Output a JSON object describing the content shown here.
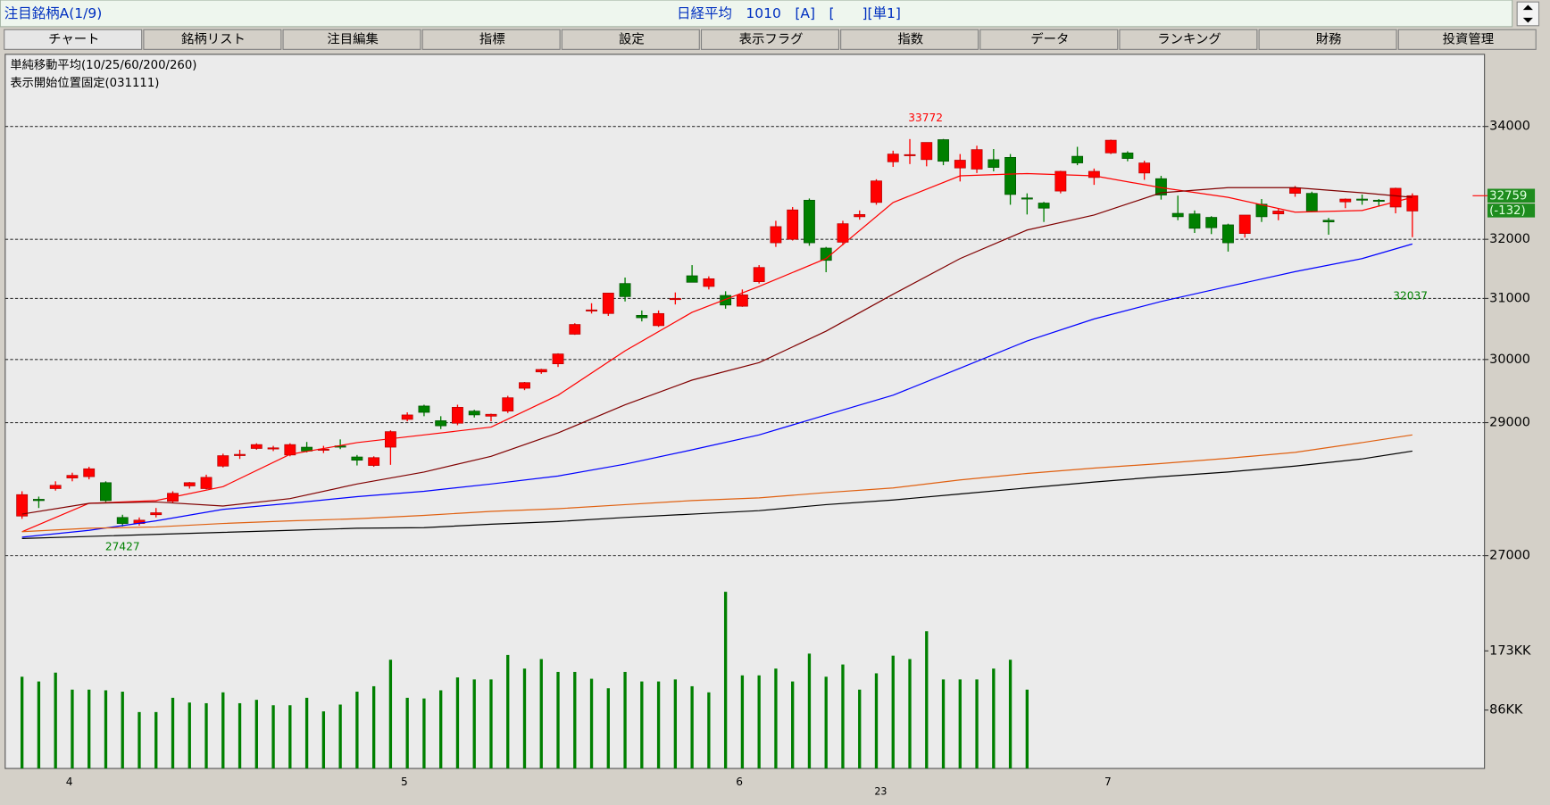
{
  "header": {
    "title": "注目銘柄A(1/9)",
    "info": "日経平均　1010　[A]　[　　][単1]"
  },
  "tabs": [
    "チャート",
    "銘柄リスト",
    "注目編集",
    "指標",
    "設定",
    "表示フラグ",
    "指数",
    "データ",
    "ランキング",
    "財務",
    "投資管理"
  ],
  "chart_data": {
    "type": "candlestick",
    "title": "単純移動平均(10/25/60/200/260)",
    "subtitle": "表示開始位置固定(031111)",
    "year_label": "23",
    "categories": [
      null,
      null,
      null,
      "4",
      null,
      null,
      null,
      null,
      null,
      null,
      null,
      null,
      null,
      null,
      null,
      null,
      null,
      null,
      null,
      null,
      null,
      null,
      null,
      "5",
      null,
      null,
      null,
      null,
      null,
      null,
      null,
      null,
      null,
      null,
      null,
      null,
      null,
      null,
      null,
      null,
      null,
      null,
      null,
      "6",
      null,
      null,
      null,
      null,
      null,
      null,
      null,
      null,
      null,
      null,
      null,
      null,
      null,
      null,
      null,
      null,
      null,
      null,
      null,
      null,
      null,
      "7",
      null,
      null,
      null,
      null,
      null,
      null,
      null,
      null,
      null,
      null,
      null,
      null,
      null,
      null,
      null,
      null,
      null,
      null
    ],
    "open": [
      27580,
      27830,
      27990,
      28150,
      28170,
      28080,
      27560,
      27470,
      27600,
      27800,
      28030,
      27990,
      28330,
      28490,
      28600,
      28610,
      28500,
      28620,
      28580,
      28640,
      28470,
      28340,
      28620,
      29050,
      29260,
      29030,
      28990,
      29180,
      29100,
      29180,
      29540,
      29800,
      29930,
      30410,
      30800,
      30750,
      31250,
      30720,
      30550,
      30980,
      31380,
      31200,
      31050,
      30870,
      31280,
      31940,
      32000,
      32680,
      31850,
      31950,
      32390,
      32640,
      33360,
      33490,
      33400,
      33760,
      33250,
      33230,
      33400,
      33440,
      32720,
      32630,
      32840,
      33460,
      33080,
      33520,
      33520,
      33160,
      33060,
      32450,
      32440,
      32380,
      32250,
      32100,
      32610,
      32440,
      32800,
      32800,
      32330,
      32650,
      32700,
      32680,
      32560,
      32490
    ],
    "high": [
      27950,
      27870,
      28100,
      28230,
      28320,
      28100,
      27600,
      27560,
      27700,
      27950,
      28090,
      28200,
      28520,
      28580,
      28680,
      28640,
      28680,
      28700,
      28640,
      28740,
      28500,
      28480,
      28880,
      29160,
      29280,
      29100,
      29280,
      29200,
      29140,
      29420,
      29640,
      29850,
      30100,
      30590,
      30920,
      31090,
      31350,
      30800,
      30800,
      31100,
      31560,
      31370,
      31120,
      31150,
      31560,
      32320,
      32560,
      32710,
      31870,
      32320,
      32500,
      33050,
      33560,
      33770,
      33710,
      33772,
      33500,
      33650,
      33590,
      33500,
      32800,
      32650,
      33200,
      33630,
      33240,
      33760,
      33550,
      33380,
      33110,
      32760,
      32500,
      32400,
      32270,
      32420,
      32700,
      32540,
      32930,
      32830,
      32370,
      32710,
      32780,
      32700,
      32900,
      32800
    ],
    "low": [
      27540,
      27700,
      27960,
      28100,
      28130,
      27790,
      27427,
      27440,
      27560,
      27780,
      27990,
      27980,
      28310,
      28440,
      28580,
      28560,
      28480,
      28540,
      28530,
      28590,
      28340,
      28320,
      28350,
      29020,
      29100,
      28900,
      28960,
      29080,
      29020,
      29150,
      29510,
      29770,
      29880,
      30400,
      30750,
      30710,
      30950,
      30620,
      30530,
      30900,
      31300,
      31150,
      30830,
      30860,
      31250,
      31870,
      31980,
      31890,
      31440,
      31900,
      32340,
      32600,
      33270,
      33320,
      33280,
      33300,
      33010,
      33160,
      33190,
      32600,
      32430,
      32300,
      32800,
      33300,
      32950,
      33500,
      33370,
      33040,
      32690,
      32330,
      32110,
      32090,
      31790,
      32030,
      32300,
      32330,
      32740,
      32480,
      32080,
      32540,
      32600,
      32580,
      32450,
      32037
    ],
    "close": [
      27900,
      27810,
      28040,
      28190,
      28290,
      27810,
      27470,
      27520,
      27630,
      27920,
      28080,
      28160,
      28490,
      28510,
      28660,
      28610,
      28660,
      28560,
      28590,
      28620,
      28420,
      28460,
      28860,
      29120,
      29160,
      28950,
      29240,
      29120,
      29130,
      29390,
      29630,
      29840,
      30090,
      30570,
      30810,
      31090,
      31030,
      30680,
      30750,
      31000,
      31270,
      31330,
      30890,
      31060,
      31520,
      32220,
      32510,
      31940,
      31640,
      32270,
      32430,
      33020,
      33500,
      33490,
      33710,
      33370,
      33390,
      33580,
      33260,
      32780,
      32700,
      32540,
      33190,
      33340,
      33190,
      33750,
      33420,
      33340,
      32770,
      32390,
      32190,
      32200,
      31940,
      32420,
      32390,
      32490,
      32900,
      32490,
      32300,
      32700,
      32680,
      32670,
      32890,
      32759
    ],
    "up_color": "#ff0000",
    "down_color": "#008000",
    "log_scale": true,
    "ylim": [
      24084,
      35343
    ],
    "yticks": [
      27000,
      29000,
      30000,
      31000,
      32000,
      34000
    ],
    "grid": true,
    "ma_x": [
      0,
      4,
      8,
      12,
      16,
      20,
      24,
      28,
      32,
      36,
      40,
      44,
      48,
      52,
      56,
      60,
      64,
      68,
      72,
      76,
      80,
      83
    ],
    "ma_series": [
      {
        "color": "#ff0000",
        "values": [
          27350,
          27770,
          27810,
          28020,
          28510,
          28690,
          28810,
          28930,
          29430,
          30140,
          30770,
          31200,
          31670,
          32640,
          33110,
          33150,
          33110,
          32900,
          32730,
          32470,
          32500,
          32730
        ]
      },
      {
        "color": "#800000",
        "values": [
          27610,
          27770,
          27790,
          27730,
          27840,
          28060,
          28240,
          28480,
          28840,
          29280,
          29670,
          29950,
          30460,
          31070,
          31670,
          32160,
          32420,
          32810,
          32900,
          32900,
          32810,
          32730
        ]
      },
      {
        "color": "#0000ff",
        "values": [
          27270,
          27370,
          27510,
          27680,
          27770,
          27870,
          27950,
          28060,
          28180,
          28360,
          28580,
          28810,
          29120,
          29430,
          29860,
          30300,
          30660,
          30950,
          31200,
          31450,
          31670,
          31920
        ]
      },
      {
        "color": "#e06010",
        "values": [
          27350,
          27400,
          27420,
          27470,
          27510,
          27540,
          27590,
          27650,
          27690,
          27750,
          27810,
          27850,
          27930,
          28000,
          28120,
          28220,
          28300,
          28370,
          28450,
          28540,
          28690,
          28810
        ]
      },
      {
        "color": "#000000",
        "values": [
          27250,
          27280,
          27310,
          27340,
          27370,
          27400,
          27410,
          27460,
          27500,
          27560,
          27610,
          27660,
          27750,
          27820,
          27910,
          28000,
          28090,
          28170,
          28240,
          28330,
          28440,
          28560
        ]
      }
    ],
    "high_label": 33772,
    "low_label": 27427,
    "recent_low_label": 32037,
    "last_price": 32759,
    "last_change": {
      "value": -132,
      "label": "(-132)"
    },
    "volume": {
      "color": "#008000",
      "ylim": [
        0,
        1051
      ],
      "yticks": [
        {
          "value": 86,
          "label": "86KK"
        },
        {
          "value": 173,
          "label": "173KK"
        }
      ],
      "values": [
        135,
        128,
        141,
        116,
        116,
        115,
        113,
        83,
        83,
        104,
        97,
        96,
        112,
        96,
        101,
        93,
        93,
        104,
        84,
        94,
        113,
        121,
        160,
        104,
        103,
        115,
        134,
        131,
        131,
        167,
        147,
        161,
        142,
        142,
        132,
        118,
        142,
        128,
        128,
        131,
        121,
        112,
        260,
        137,
        137,
        147,
        128,
        169,
        135,
        153,
        116,
        140,
        166,
        161,
        202,
        131,
        131,
        131,
        147,
        160,
        116,
        null,
        null,
        null,
        null,
        null,
        null,
        null,
        null,
        null,
        null,
        null,
        null,
        null,
        null,
        null,
        null,
        null,
        null,
        null,
        null,
        null,
        null,
        null
      ]
    }
  }
}
